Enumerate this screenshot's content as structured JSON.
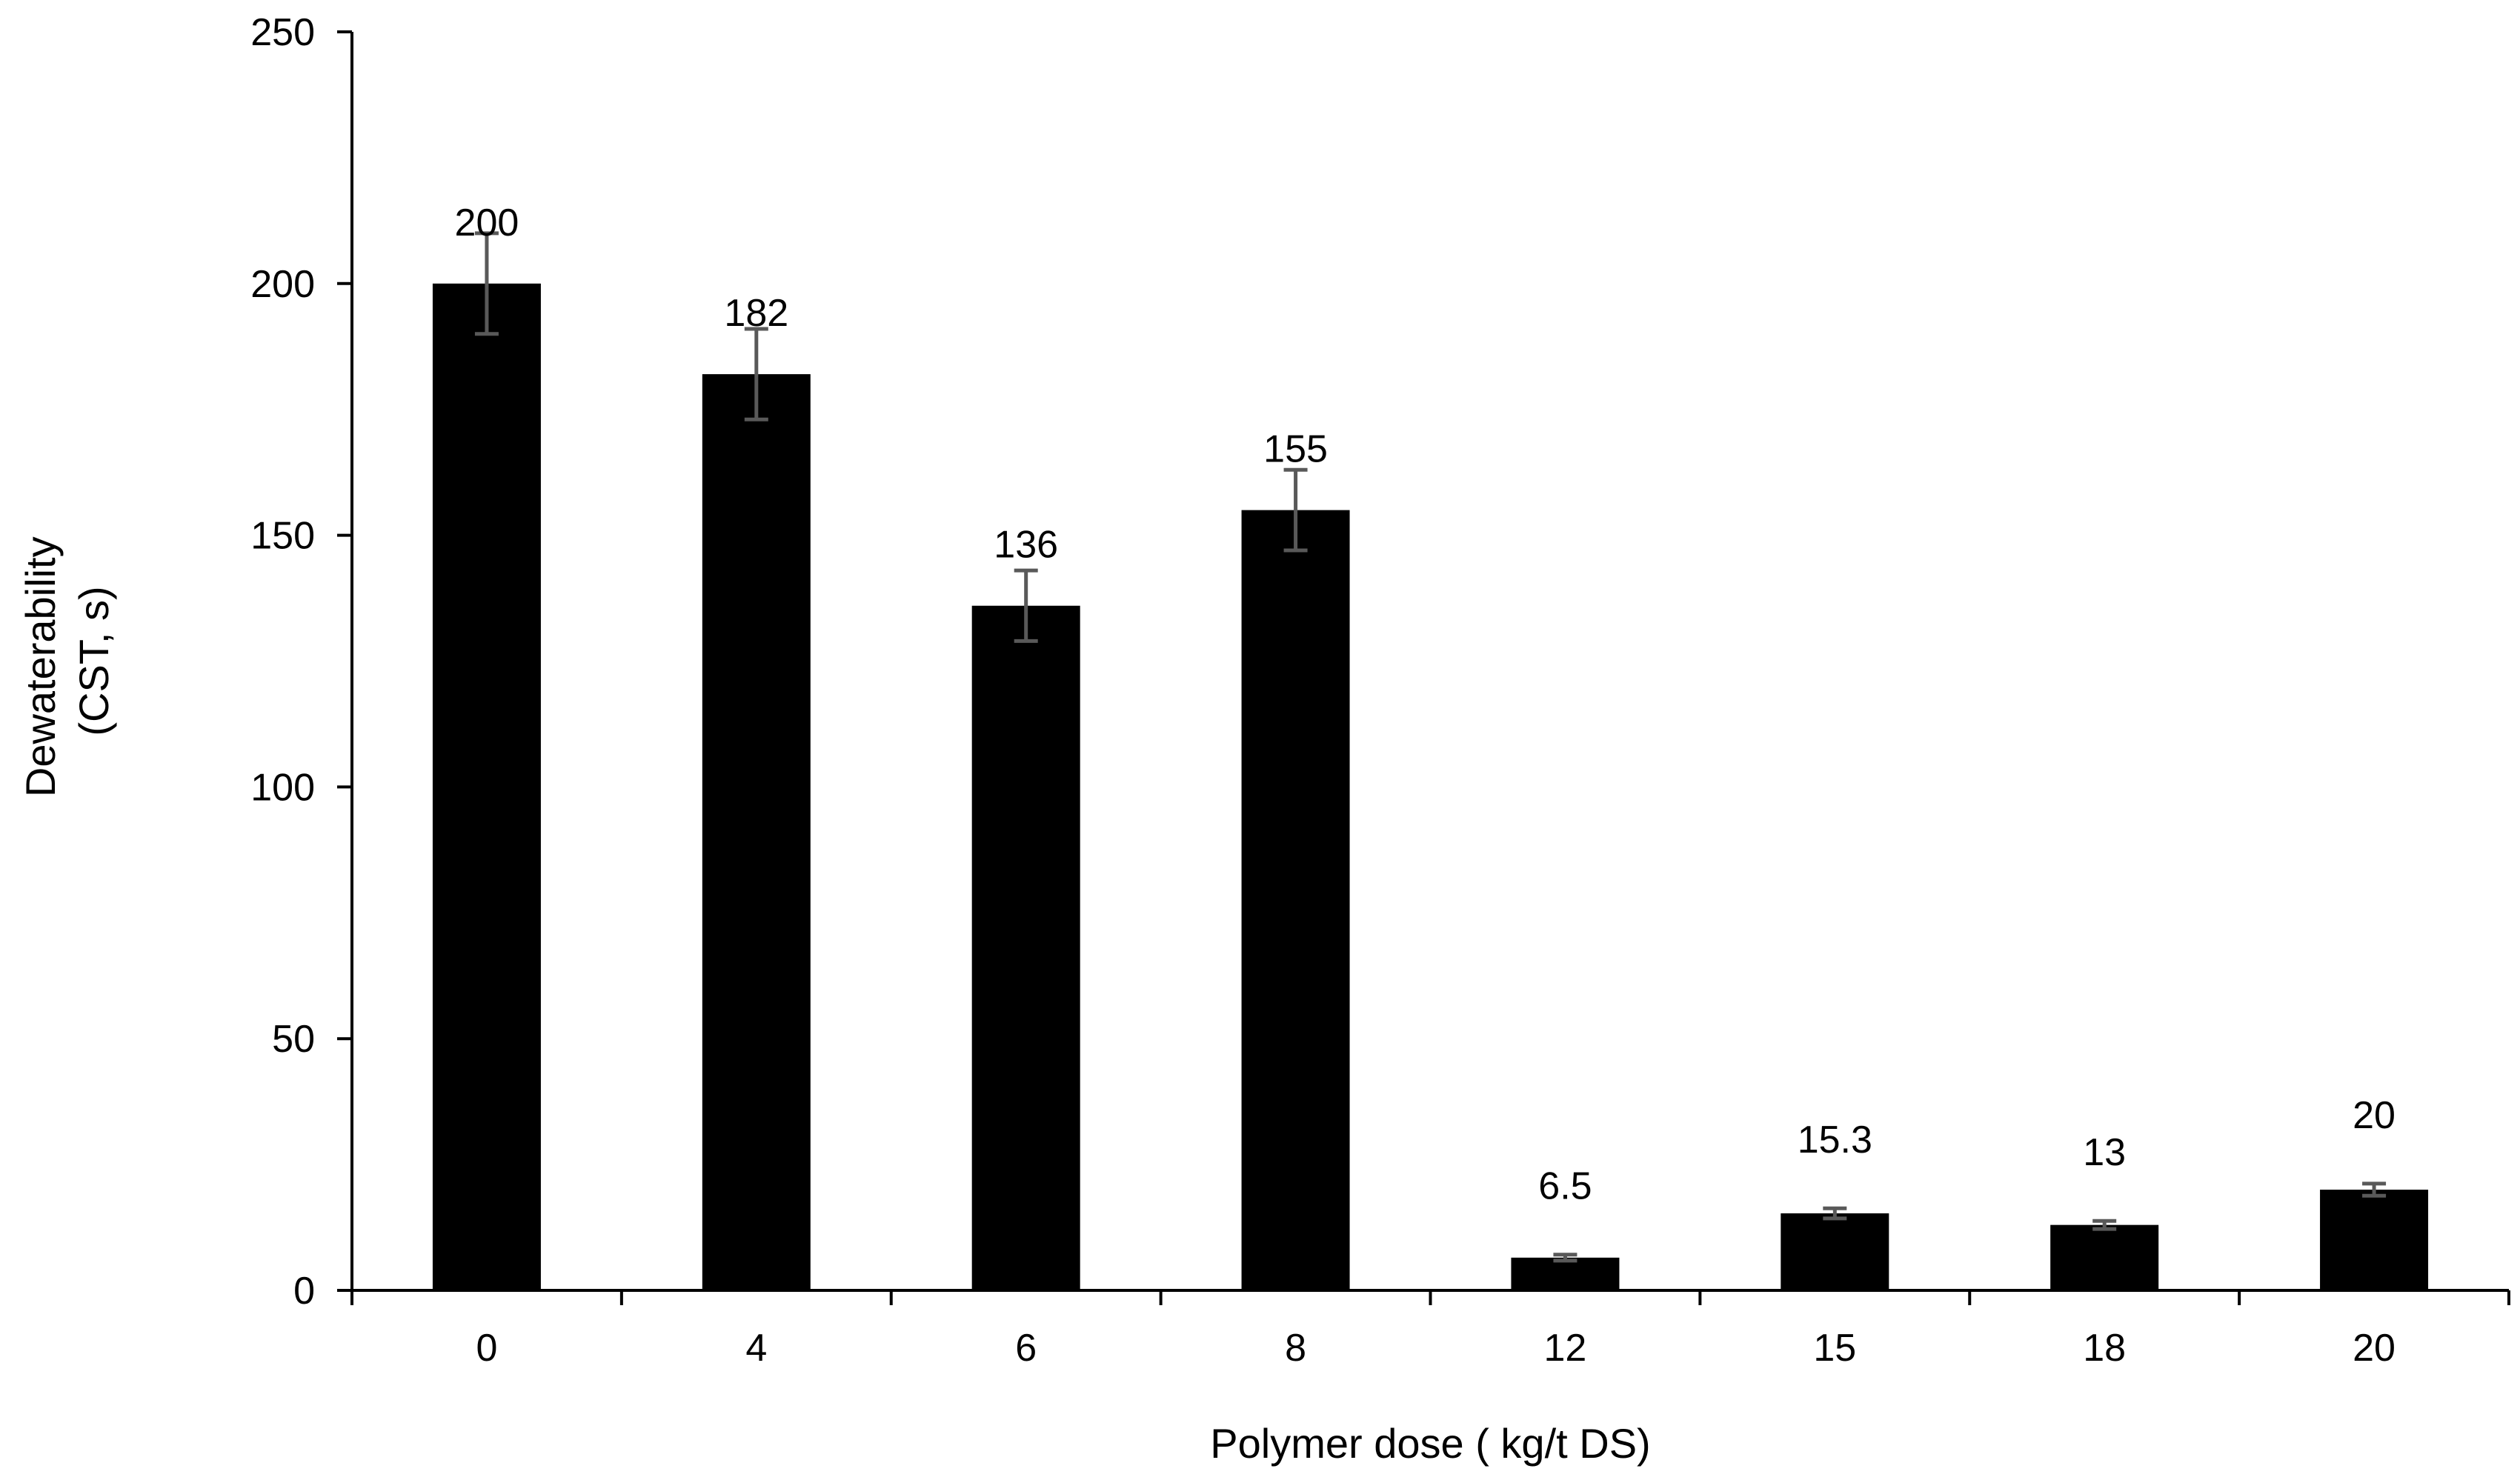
{
  "chart_data": {
    "type": "bar",
    "title": "",
    "xlabel": "Polymer dose ( kg/t DS)",
    "ylabel_lines": [
      "Dewaterability",
      "(CST, s)"
    ],
    "categories": [
      "0",
      "4",
      "6",
      "8",
      "12",
      "15",
      "18",
      "20"
    ],
    "values": [
      200,
      182,
      136,
      155,
      6.5,
      15.3,
      13,
      20
    ],
    "data_labels": [
      "200",
      "182",
      "136",
      "155",
      "6.5",
      "15.3",
      "13",
      "20"
    ],
    "error": [
      10,
      9,
      7,
      8,
      0.6,
      1,
      0.8,
      1.2
    ],
    "ylim": [
      0,
      250
    ],
    "yticks": [
      "0",
      "50",
      "100",
      "150",
      "200",
      "250"
    ],
    "grid": false,
    "legend": "none",
    "colors": {
      "bar": "#000000",
      "error_bar": "#595959",
      "axis": "#000000"
    }
  }
}
